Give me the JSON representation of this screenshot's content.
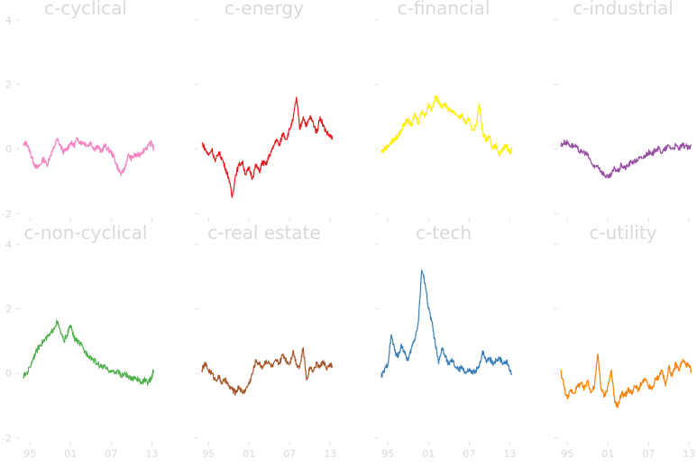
{
  "chart_data": {
    "type": "line",
    "y_ticks": [
      "4",
      "2",
      "0",
      "-2"
    ],
    "x_ticks": [
      "95",
      "01",
      "07",
      "13"
    ],
    "ylim": [
      -2,
      4
    ],
    "x_range": [
      1993.5,
      2013.5
    ],
    "grid": false,
    "legend": "none",
    "panels": [
      {
        "title": "c-cyclical",
        "color": "#f781bf",
        "x": [
          1994.0,
          1994.5,
          1995.0,
          1995.5,
          1996.0,
          1996.5,
          1997.0,
          1997.5,
          1998.0,
          1998.5,
          1999.0,
          1999.5,
          2000.0,
          2000.5,
          2001.0,
          2001.5,
          2002.0,
          2002.5,
          2003.0,
          2003.5,
          2004.0,
          2004.5,
          2005.0,
          2005.5,
          2006.0,
          2006.5,
          2007.0,
          2007.5,
          2008.0,
          2008.5,
          2009.0,
          2009.5,
          2010.0,
          2010.5,
          2011.0,
          2011.5,
          2012.0,
          2012.5,
          2013.0,
          2013.3
        ],
        "values": [
          0.1,
          0.2,
          -0.1,
          -0.4,
          -0.6,
          -0.5,
          -0.3,
          -0.5,
          -0.2,
          0.0,
          0.3,
          0.1,
          -0.1,
          0.0,
          0.2,
          0.1,
          0.3,
          0.2,
          0.2,
          0.1,
          0.2,
          0.0,
          0.1,
          -0.1,
          0.1,
          0.0,
          -0.1,
          -0.3,
          -0.6,
          -0.8,
          -0.6,
          -0.2,
          -0.3,
          -0.2,
          -0.2,
          -0.1,
          0.0,
          0.1,
          0.2,
          0.0
        ]
      },
      {
        "title": "c-energy",
        "color": "#e41a1c",
        "x": [
          1994.0,
          1994.5,
          1995.0,
          1995.5,
          1996.0,
          1996.5,
          1997.0,
          1997.5,
          1998.0,
          1998.5,
          1999.0,
          1999.5,
          2000.0,
          2000.5,
          2001.0,
          2001.5,
          2002.0,
          2002.5,
          2003.0,
          2003.5,
          2004.0,
          2004.5,
          2005.0,
          2005.5,
          2006.0,
          2006.5,
          2007.0,
          2007.5,
          2008.0,
          2008.5,
          2009.0,
          2009.5,
          2010.0,
          2010.5,
          2011.0,
          2011.5,
          2012.0,
          2012.5,
          2013.0,
          2013.3
        ],
        "values": [
          0.2,
          0.0,
          -0.2,
          0.0,
          -0.4,
          -0.1,
          -0.3,
          -0.6,
          -0.9,
          -1.5,
          -0.8,
          -0.5,
          -0.4,
          -0.8,
          -0.6,
          -0.9,
          -0.5,
          -0.7,
          -0.4,
          -0.5,
          -0.2,
          0.0,
          0.3,
          0.1,
          0.5,
          0.3,
          0.6,
          0.9,
          1.6,
          0.6,
          1.0,
          0.7,
          1.0,
          0.8,
          0.5,
          1.0,
          0.7,
          0.5,
          0.4,
          0.3
        ]
      },
      {
        "title": "c-financial",
        "color": "#ffee00",
        "x": [
          1994.0,
          1994.5,
          1995.0,
          1995.5,
          1996.0,
          1996.5,
          1997.0,
          1997.5,
          1998.0,
          1998.5,
          1999.0,
          1999.5,
          2000.0,
          2000.5,
          2001.0,
          2001.5,
          2002.0,
          2002.5,
          2003.0,
          2003.5,
          2004.0,
          2004.5,
          2005.0,
          2005.5,
          2006.0,
          2006.5,
          2007.0,
          2007.5,
          2008.0,
          2008.5,
          2009.0,
          2009.5,
          2010.0,
          2010.5,
          2011.0,
          2011.5,
          2012.0,
          2012.5,
          2013.0,
          2013.3
        ],
        "values": [
          -0.1,
          0.0,
          0.1,
          0.2,
          0.3,
          0.4,
          0.6,
          0.8,
          0.9,
          0.7,
          1.1,
          0.8,
          1.2,
          1.0,
          1.4,
          1.2,
          1.6,
          1.5,
          1.3,
          1.4,
          1.2,
          1.2,
          1.1,
          1.0,
          1.0,
          0.8,
          0.9,
          0.6,
          0.7,
          1.4,
          0.5,
          0.3,
          0.4,
          0.0,
          0.1,
          -0.2,
          0.0,
          0.1,
          -0.1,
          0.0
        ]
      },
      {
        "title": "c-industrial",
        "color": "#984ea3",
        "x": [
          1994.0,
          1994.5,
          1995.0,
          1995.5,
          1996.0,
          1996.5,
          1997.0,
          1997.5,
          1998.0,
          1998.5,
          1999.0,
          1999.5,
          2000.0,
          2000.5,
          2001.0,
          2001.5,
          2002.0,
          2002.5,
          2003.0,
          2003.5,
          2004.0,
          2004.5,
          2005.0,
          2005.5,
          2006.0,
          2006.5,
          2007.0,
          2007.5,
          2008.0,
          2008.5,
          2009.0,
          2009.5,
          2010.0,
          2010.5,
          2011.0,
          2011.5,
          2012.0,
          2012.5,
          2013.0,
          2013.3
        ],
        "values": [
          0.1,
          0.2,
          0.2,
          0.1,
          0.1,
          0.0,
          -0.1,
          -0.1,
          -0.2,
          -0.4,
          -0.6,
          -0.5,
          -0.7,
          -0.8,
          -0.9,
          -0.8,
          -0.6,
          -0.7,
          -0.5,
          -0.6,
          -0.5,
          -0.4,
          -0.4,
          -0.3,
          -0.3,
          -0.2,
          -0.1,
          -0.2,
          0.0,
          0.0,
          -0.1,
          0.0,
          0.1,
          0.0,
          0.1,
          0.0,
          0.1,
          0.1,
          0.0,
          0.1
        ]
      },
      {
        "title": "c-non-cyclical",
        "color": "#4daf4a",
        "x": [
          1994.0,
          1994.5,
          1995.0,
          1995.5,
          1996.0,
          1996.5,
          1997.0,
          1997.5,
          1998.0,
          1998.5,
          1999.0,
          1999.5,
          2000.0,
          2000.5,
          2001.0,
          2001.5,
          2002.0,
          2002.5,
          2003.0,
          2003.5,
          2004.0,
          2004.5,
          2005.0,
          2005.5,
          2006.0,
          2006.5,
          2007.0,
          2007.5,
          2008.0,
          2008.5,
          2009.0,
          2009.5,
          2010.0,
          2010.5,
          2011.0,
          2011.5,
          2012.0,
          2012.5,
          2013.0,
          2013.3
        ],
        "values": [
          -0.1,
          0.0,
          0.2,
          0.5,
          0.7,
          0.9,
          1.0,
          1.1,
          1.2,
          1.4,
          1.6,
          1.3,
          1.0,
          1.2,
          1.5,
          1.1,
          1.0,
          0.9,
          0.7,
          0.6,
          0.5,
          0.4,
          0.3,
          0.2,
          0.2,
          0.1,
          0.1,
          0.0,
          0.1,
          -0.1,
          0.0,
          -0.1,
          -0.2,
          -0.1,
          -0.2,
          -0.3,
          -0.2,
          -0.3,
          -0.1,
          0.1
        ]
      },
      {
        "title": "c-real estate",
        "color": "#a65628",
        "x": [
          1994.0,
          1994.5,
          1995.0,
          1995.5,
          1996.0,
          1996.5,
          1997.0,
          1997.5,
          1998.0,
          1998.5,
          1999.0,
          1999.5,
          2000.0,
          2000.5,
          2001.0,
          2001.5,
          2002.0,
          2002.5,
          2003.0,
          2003.5,
          2004.0,
          2004.5,
          2005.0,
          2005.5,
          2006.0,
          2006.5,
          2007.0,
          2007.5,
          2008.0,
          2008.5,
          2009.0,
          2009.5,
          2010.0,
          2010.5,
          2011.0,
          2011.5,
          2012.0,
          2012.5,
          2013.0,
          2013.3
        ],
        "values": [
          0.1,
          0.3,
          0.1,
          0.0,
          -0.2,
          -0.1,
          -0.3,
          -0.2,
          -0.4,
          -0.5,
          -0.6,
          -0.4,
          -0.6,
          -0.5,
          -0.3,
          0.0,
          0.4,
          0.3,
          0.2,
          0.4,
          0.3,
          0.2,
          0.4,
          0.3,
          0.6,
          0.4,
          0.3,
          0.7,
          0.3,
          0.2,
          0.8,
          -0.2,
          0.2,
          0.1,
          0.3,
          0.2,
          0.4,
          0.1,
          0.3,
          0.2
        ]
      },
      {
        "title": "c-tech",
        "color": "#377eb8",
        "x": [
          1994.0,
          1994.5,
          1995.0,
          1995.5,
          1996.0,
          1996.5,
          1997.0,
          1997.5,
          1998.0,
          1998.5,
          1999.0,
          1999.5,
          2000.0,
          2000.5,
          2001.0,
          2001.5,
          2002.0,
          2002.5,
          2003.0,
          2003.5,
          2004.0,
          2004.5,
          2005.0,
          2005.5,
          2006.0,
          2006.5,
          2007.0,
          2007.5,
          2008.0,
          2008.5,
          2009.0,
          2009.5,
          2010.0,
          2010.5,
          2011.0,
          2011.5,
          2012.0,
          2012.5,
          2013.0,
          2013.3
        ],
        "values": [
          -0.1,
          0.1,
          0.3,
          1.2,
          0.7,
          0.5,
          0.9,
          0.6,
          0.4,
          0.8,
          1.1,
          1.6,
          3.2,
          2.8,
          2.0,
          1.6,
          0.9,
          0.3,
          0.8,
          0.5,
          0.3,
          0.4,
          0.2,
          0.1,
          0.2,
          0.0,
          0.1,
          0.0,
          0.1,
          0.2,
          0.7,
          0.4,
          0.5,
          0.3,
          0.4,
          0.5,
          0.3,
          0.4,
          0.1,
          0.0
        ]
      },
      {
        "title": "c-utility",
        "color": "#ff7f00",
        "x": [
          1994.0,
          1994.5,
          1995.0,
          1995.5,
          1996.0,
          1996.5,
          1997.0,
          1997.5,
          1998.0,
          1998.5,
          1999.0,
          1999.5,
          2000.0,
          2000.5,
          2001.0,
          2001.5,
          2002.0,
          2002.5,
          2003.0,
          2003.5,
          2004.0,
          2004.5,
          2005.0,
          2005.5,
          2006.0,
          2006.5,
          2007.0,
          2007.5,
          2008.0,
          2008.5,
          2009.0,
          2009.5,
          2010.0,
          2010.5,
          2011.0,
          2011.5,
          2012.0,
          2012.5,
          2013.0,
          2013.3
        ],
        "values": [
          0.1,
          -0.4,
          -0.8,
          -0.5,
          -0.6,
          -0.4,
          -0.3,
          -0.5,
          -0.2,
          -0.6,
          -0.4,
          0.6,
          -0.5,
          -0.7,
          -0.4,
          0.1,
          -0.9,
          -1.0,
          -0.6,
          -0.7,
          -0.5,
          -0.6,
          -0.4,
          -0.5,
          -0.3,
          -0.2,
          -0.4,
          -0.5,
          -0.2,
          -0.1,
          0.1,
          -0.4,
          0.2,
          -0.1,
          0.3,
          0.1,
          0.4,
          0.3,
          0.2,
          0.1
        ]
      }
    ]
  }
}
